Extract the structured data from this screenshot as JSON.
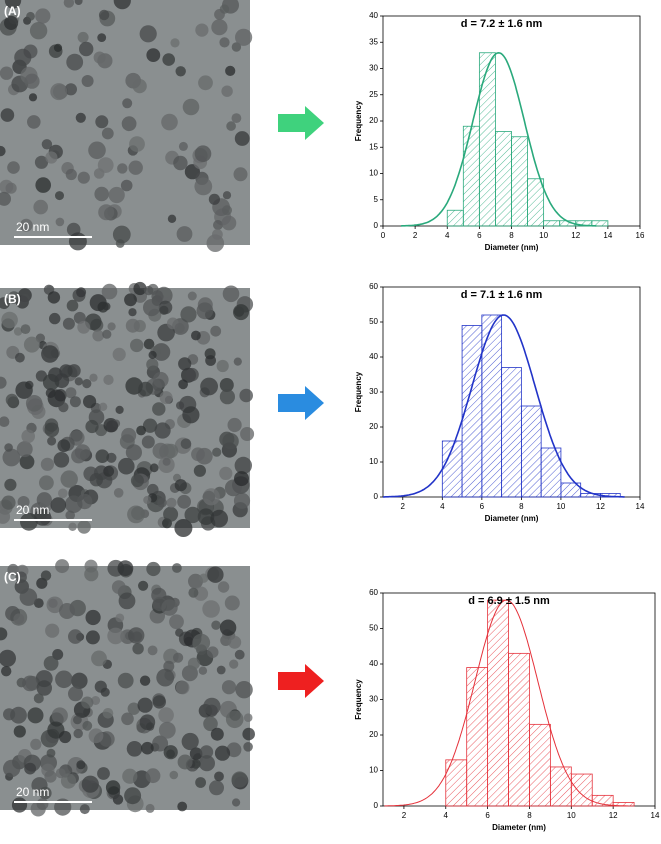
{
  "chart_data": [
    {
      "type": "histogram",
      "title": "d = 7.2 ± 1.6 nm",
      "x_label": "Diameter (nm)",
      "y_label": "Frequency",
      "color": "#2aa97c",
      "bins": [
        4,
        5,
        6,
        7,
        8,
        9,
        10,
        11,
        12,
        13,
        14
      ],
      "counts": [
        3,
        19,
        33,
        18,
        17,
        9,
        1,
        1,
        1,
        1
      ],
      "fit": {
        "mean": 7.2,
        "sd": 1.6,
        "amplitude": 33
      },
      "xlim": [
        0,
        16
      ],
      "xticks": [
        0,
        2,
        4,
        6,
        8,
        10,
        12,
        14,
        16
      ],
      "ylim": [
        0,
        40
      ],
      "yticks": [
        0,
        5,
        10,
        15,
        20,
        25,
        30,
        35,
        40
      ]
    },
    {
      "type": "histogram",
      "title": "d  = 7.1 ± 1.6 nm",
      "x_label": "Diameter (nm)",
      "y_label": "Frequency",
      "color": "#2234c8",
      "bins": [
        4,
        5,
        6,
        7,
        8,
        9,
        10,
        11,
        12,
        13
      ],
      "counts": [
        16,
        49,
        52,
        37,
        26,
        14,
        4,
        1,
        1
      ],
      "fit": {
        "mean": 7.1,
        "sd": 1.6,
        "amplitude": 52
      },
      "xlim": [
        1,
        14
      ],
      "xticks": [
        2,
        4,
        6,
        8,
        10,
        12,
        14
      ],
      "ylim": [
        0,
        60
      ],
      "yticks": [
        0,
        10,
        20,
        30,
        40,
        50,
        60
      ]
    },
    {
      "type": "histogram",
      "title": "d  = 6.9 ± 1.5 nm",
      "x_label": "Diameter (nm)",
      "y_label": "Frequency",
      "color": "#e5313a",
      "bins": [
        4,
        5,
        6,
        7,
        8,
        9,
        10,
        11,
        12,
        13
      ],
      "counts": [
        13,
        39,
        58,
        43,
        23,
        11,
        9,
        3,
        1
      ],
      "fit": {
        "mean": 6.9,
        "sd": 1.5,
        "amplitude": 58
      },
      "xlim": [
        1,
        14
      ],
      "xticks": [
        2,
        4,
        6,
        8,
        10,
        12,
        14
      ],
      "ylim": [
        0,
        60
      ],
      "yticks": [
        0,
        10,
        20,
        30,
        40,
        50,
        60
      ]
    }
  ],
  "panels": [
    {
      "label": "(A)",
      "scale_bar": "20 nm"
    },
    {
      "label": "(B)",
      "scale_bar": "20 nm"
    },
    {
      "label": "(C)",
      "scale_bar": "20 nm"
    }
  ]
}
